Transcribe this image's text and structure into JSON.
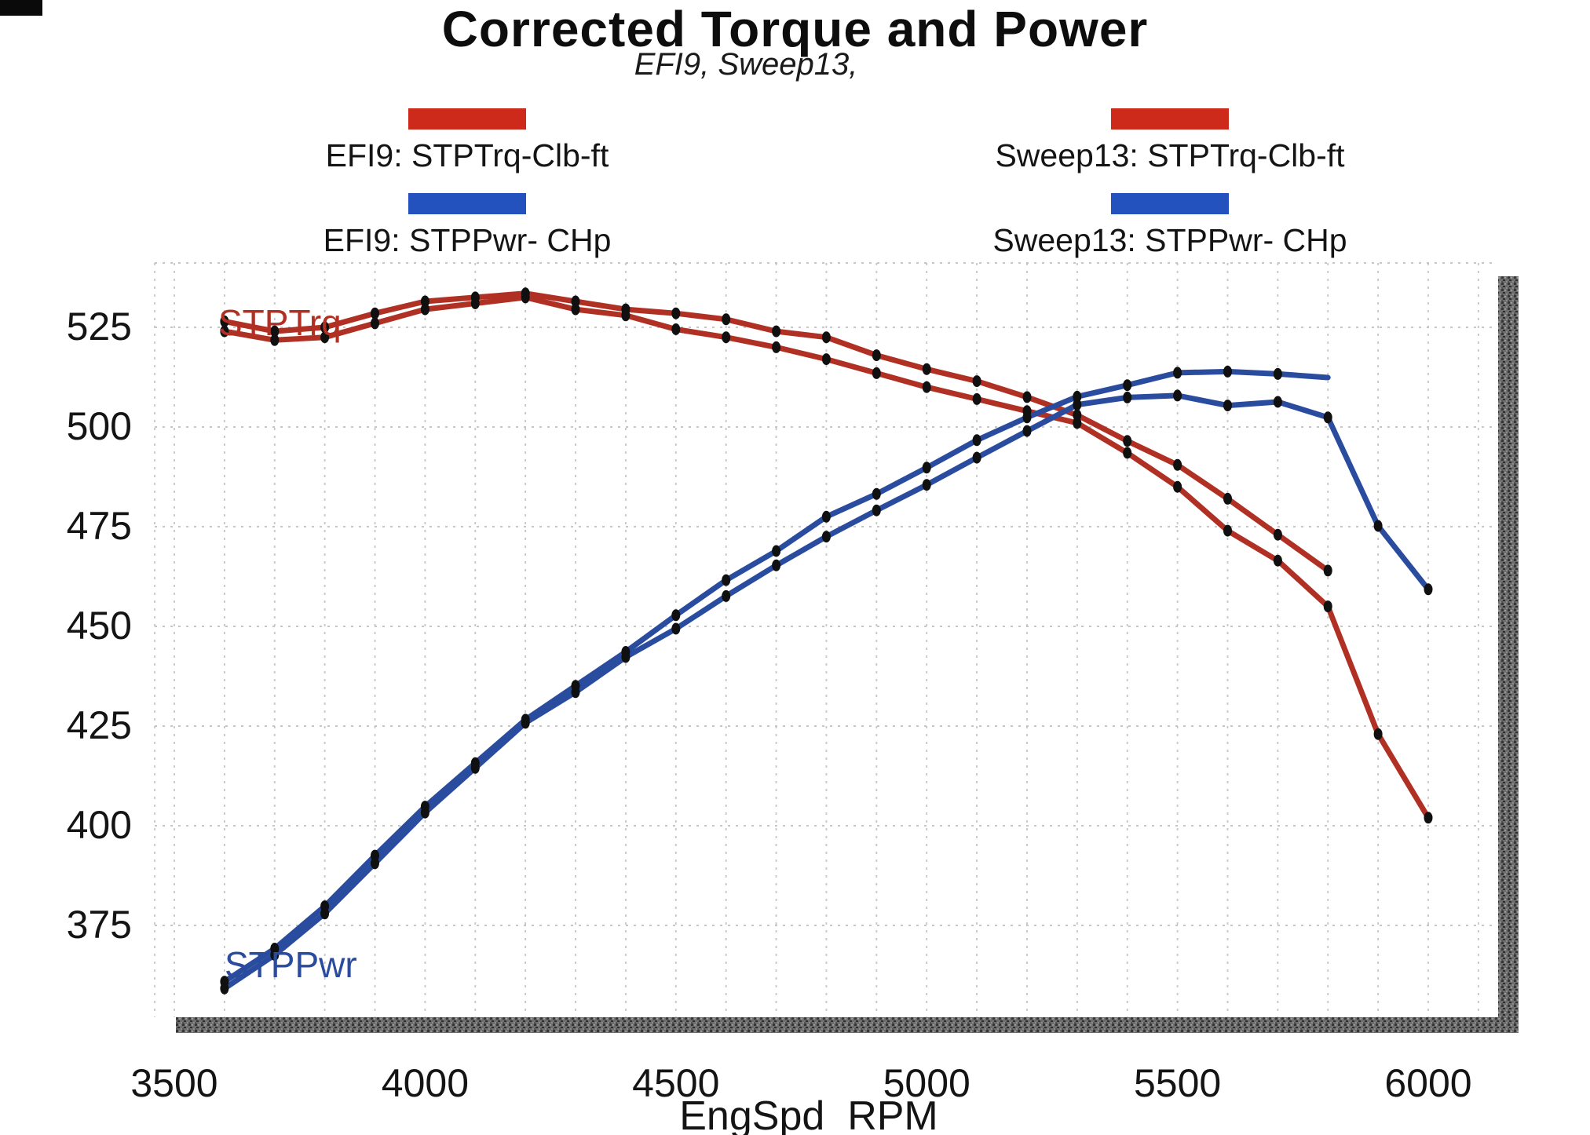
{
  "page": {
    "title": "Corrected Torque and Power",
    "subtitle": "EFI9, Sweep13,"
  },
  "colors": {
    "torque_line": "#b03124",
    "power_line": "#2a4c9f",
    "legend_torque_swatch": "#ce2a1c",
    "legend_power_swatch": "#2351bd",
    "marker": "#101010"
  },
  "legend": {
    "items": [
      {
        "id": "efi9-torque",
        "label": "EFI9: STPTrq-Clb-ft",
        "color": "#ce2a1c"
      },
      {
        "id": "efi9-power",
        "label": "EFI9: STPPwr- CHp",
        "color": "#2351bd"
      },
      {
        "id": "sweep13-torque",
        "label": "Sweep13: STPTrq-Clb-ft",
        "color": "#ce2a1c"
      },
      {
        "id": "sweep13-power",
        "label": "Sweep13: STPPwr- CHp",
        "color": "#2351bd"
      }
    ]
  },
  "annotations": {
    "torque_curve_label": {
      "text": "STPTrq",
      "color": "#b03124"
    },
    "power_curve_label": {
      "text": "STPPwr",
      "color": "#2a4c9f"
    }
  },
  "chart_data": {
    "type": "line",
    "title": "Corrected Torque and Power",
    "subtitle": "EFI9, Sweep13,",
    "xlabel": "EngSpd  RPM",
    "ylabel": "",
    "xlim": [
      3460,
      6140
    ],
    "ylim": [
      352,
      541
    ],
    "xticks": [
      3500,
      4000,
      4500,
      5000,
      5500,
      6000
    ],
    "yticks": [
      525,
      500,
      475,
      450,
      425,
      400,
      375
    ],
    "grid": {
      "x_step_rpm": 100,
      "y_step": 25,
      "style": "dotted"
    },
    "legend_position": "top",
    "series": [
      {
        "id": "efi9-stptrq",
        "name": "EFI9: STPTrq-Clb-ft",
        "unit": "Clb-ft",
        "color": "#b03124",
        "x": [
          3600,
          3700,
          3800,
          3900,
          4000,
          4100,
          4200,
          4300,
          4400,
          4500,
          4600,
          4700,
          4800,
          4900,
          5000,
          5100,
          5200,
          5300,
          5400,
          5500,
          5600,
          5700,
          5800
        ],
        "values": [
          526.5,
          524.0,
          525.0,
          528.5,
          531.5,
          532.5,
          533.5,
          531.5,
          529.5,
          528.5,
          527.0,
          524.0,
          522.5,
          518.0,
          514.5,
          511.5,
          507.5,
          503.0,
          496.5,
          490.5,
          482.0,
          473.0,
          464.0
        ]
      },
      {
        "id": "sweep13-stptrq",
        "name": "Sweep13: STPTrq-Clb-ft",
        "unit": "Clb-ft",
        "color": "#b03124",
        "x": [
          3600,
          3700,
          3800,
          3900,
          4000,
          4100,
          4200,
          4300,
          4400,
          4500,
          4600,
          4700,
          4800,
          4900,
          5000,
          5100,
          5200,
          5300,
          5400,
          5500,
          5600,
          5700,
          5800,
          5900,
          6000
        ],
        "values": [
          524.0,
          521.8,
          522.5,
          526.0,
          529.5,
          531.0,
          532.5,
          529.5,
          528.0,
          524.5,
          522.5,
          520.0,
          517.0,
          513.5,
          510.0,
          507.0,
          504.0,
          501.0,
          493.5,
          485.0,
          474.0,
          466.5,
          455.0,
          423.0,
          402.0
        ]
      },
      {
        "id": "efi9-stppwr",
        "name": "EFI9: STPPwr- CHp",
        "unit": "CHp",
        "color": "#2a4c9f",
        "no_end_dot": true,
        "x": [
          3600,
          3700,
          3800,
          3900,
          4000,
          4100,
          4200,
          4300,
          4400,
          4500,
          4600,
          4700,
          4800,
          4900,
          5000,
          5100,
          5200,
          5300,
          5400,
          5500,
          5600,
          5700,
          5800
        ],
        "values": [
          360.9,
          369.2,
          379.8,
          392.5,
          404.8,
          415.7,
          426.6,
          435.1,
          443.6,
          452.8,
          461.6,
          468.9,
          477.5,
          483.2,
          489.8,
          496.7,
          502.4,
          507.6,
          510.5,
          513.6,
          513.9,
          513.3,
          512.4
        ]
      },
      {
        "id": "sweep13-stppwr",
        "name": "Sweep13: STPPwr- CHp",
        "unit": "CHp",
        "color": "#2a4c9f",
        "x": [
          3600,
          3700,
          3800,
          3900,
          4000,
          4100,
          4200,
          4300,
          4400,
          4500,
          4600,
          4700,
          4800,
          4900,
          5000,
          5100,
          5200,
          5300,
          5400,
          5500,
          5600,
          5700,
          5800,
          5900,
          6000
        ],
        "values": [
          359.2,
          367.6,
          378.0,
          390.6,
          403.3,
          414.5,
          425.8,
          433.5,
          442.3,
          449.4,
          457.6,
          465.3,
          472.5,
          479.1,
          485.5,
          492.3,
          499.0,
          505.6,
          507.4,
          507.9,
          505.4,
          506.3,
          502.4,
          475.2,
          459.3
        ]
      }
    ]
  }
}
